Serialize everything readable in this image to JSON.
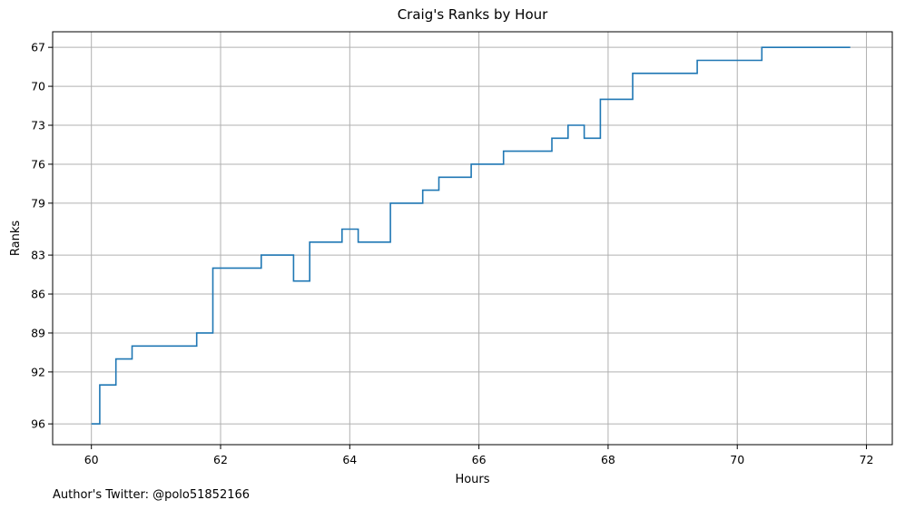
{
  "footer": {
    "note": "Author's Twitter: @polo51852166"
  },
  "chart_data": {
    "type": "line",
    "step": "post",
    "title": "Craig's Ranks by Hour",
    "xlabel": "Hours",
    "ylabel": "Ranks",
    "xlim": [
      59.4,
      72.4
    ],
    "ylim": [
      97.6,
      65.8
    ],
    "y_inverted": true,
    "grid": true,
    "x_ticks": [
      60,
      62,
      64,
      66,
      68,
      70,
      72
    ],
    "y_ticks": [
      67,
      70,
      73,
      76,
      79,
      83,
      86,
      89,
      92,
      96
    ],
    "line_color": "#1f77b4",
    "series": [
      {
        "x": [
          60.0,
          60.13,
          60.38,
          60.63,
          61.63,
          61.88,
          62.63,
          63.13,
          63.38,
          63.88,
          64.13,
          64.63,
          65.13,
          65.38,
          65.88,
          66.38,
          67.13,
          67.38,
          67.63,
          67.88,
          68.38,
          69.38,
          70.38,
          71.75
        ],
        "y": [
          96,
          93,
          91,
          90,
          89,
          84,
          83,
          85,
          82,
          81,
          82,
          79,
          78,
          77,
          76,
          75,
          74,
          73,
          74,
          71,
          69,
          68,
          67,
          67
        ]
      }
    ]
  }
}
